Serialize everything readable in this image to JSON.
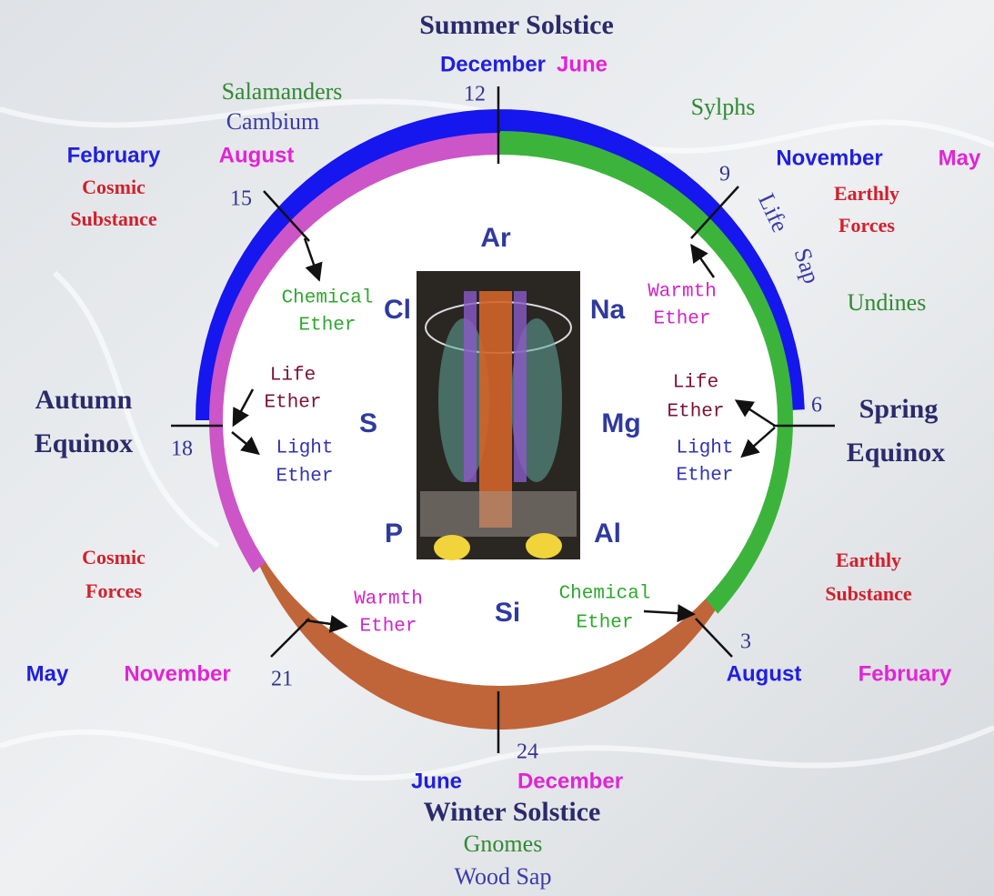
{
  "top": {
    "title": "Summer Solstice",
    "month_north": "December",
    "month_south": "June",
    "hour": 12
  },
  "upper_left": {
    "elemental": "Salamanders",
    "sap": "Cambium",
    "month_north": "February",
    "month_south": "August",
    "force": [
      "Cosmic",
      "Substance"
    ],
    "hour": 15
  },
  "upper_right": {
    "elemental": "Sylphs",
    "month_north": "November",
    "month_south": "May",
    "force": [
      "Earthly",
      "Forces"
    ],
    "sap": [
      "Life",
      "Sap"
    ],
    "elemental_2": "Undines",
    "hour": 9
  },
  "right": {
    "title": [
      "Spring",
      "Equinox"
    ],
    "hour": 6
  },
  "left": {
    "title": [
      "Autumn",
      "Equinox"
    ],
    "hour": 18
  },
  "lower_left": {
    "force": [
      "Cosmic",
      "Forces"
    ],
    "month_north": "May",
    "month_south": "November",
    "hour": 21
  },
  "lower_right": {
    "force": [
      "Earthly",
      "Substance"
    ],
    "month_north": "August",
    "month_south": "February",
    "hour": 3
  },
  "bottom": {
    "hour": 24,
    "month_north": "June",
    "month_south": "December",
    "title": "Winter Solstice",
    "elemental": "Gnomes",
    "sap": "Wood Sap"
  },
  "elements": [
    "Ar",
    "Cl",
    "Na",
    "S",
    "Mg",
    "P",
    "Al",
    "Si"
  ],
  "ethers": [
    [
      "Chemical",
      "Ether"
    ],
    [
      "Warmth",
      "Ether"
    ],
    [
      "Life",
      "Ether"
    ],
    [
      "Light",
      "Ether"
    ],
    [
      "Life",
      "Ether"
    ],
    [
      "Light",
      "Ether"
    ],
    [
      "Warmth",
      "Ether"
    ],
    [
      "Chemical",
      "Ether"
    ]
  ]
}
